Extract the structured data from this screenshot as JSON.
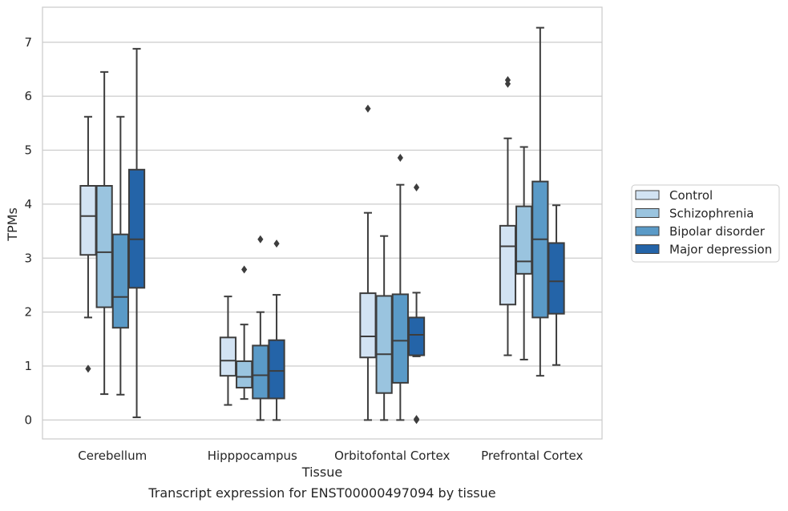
{
  "chart_data": {
    "type": "box",
    "caption": "Transcript expression for ENST00000497094 by tissue",
    "xlabel": "Tissue",
    "ylabel": "TPMs",
    "ylim": [
      -0.35,
      7.65
    ],
    "yticks": [
      0,
      1,
      2,
      3,
      4,
      5,
      6,
      7
    ],
    "grid": true,
    "legend_position": "right",
    "categories": [
      "Cerebellum",
      "Hipppocampus",
      "Orbitofontal Cortex",
      "Prefrontal Cortex"
    ],
    "series": [
      {
        "name": "Control",
        "color": "#d2e3f3",
        "boxes": [
          {
            "whisker_low": 1.9,
            "q1": 3.06,
            "median": 3.78,
            "q3": 4.34,
            "whisker_high": 5.62,
            "outliers": [
              0.95
            ]
          },
          {
            "whisker_low": 0.28,
            "q1": 0.82,
            "median": 1.1,
            "q3": 1.53,
            "whisker_high": 2.29,
            "outliers": []
          },
          {
            "whisker_low": 0.0,
            "q1": 1.16,
            "median": 1.55,
            "q3": 2.35,
            "whisker_high": 3.84,
            "outliers": [
              5.77
            ]
          },
          {
            "whisker_low": 1.2,
            "q1": 2.14,
            "median": 3.22,
            "q3": 3.6,
            "whisker_high": 5.22,
            "outliers": [
              6.23,
              6.3
            ]
          }
        ]
      },
      {
        "name": "Schizophrenia",
        "color": "#9ac4df",
        "boxes": [
          {
            "whisker_low": 0.48,
            "q1": 2.09,
            "median": 3.11,
            "q3": 4.34,
            "whisker_high": 6.45,
            "outliers": []
          },
          {
            "whisker_low": 0.39,
            "q1": 0.6,
            "median": 0.8,
            "q3": 1.09,
            "whisker_high": 1.77,
            "outliers": [
              2.79
            ]
          },
          {
            "whisker_low": 0.0,
            "q1": 0.5,
            "median": 1.22,
            "q3": 2.3,
            "whisker_high": 3.41,
            "outliers": []
          },
          {
            "whisker_low": 1.12,
            "q1": 2.71,
            "median": 2.94,
            "q3": 3.96,
            "whisker_high": 5.06,
            "outliers": []
          }
        ]
      },
      {
        "name": "Bipolar disorder",
        "color": "#5a9ac7",
        "boxes": [
          {
            "whisker_low": 0.47,
            "q1": 1.71,
            "median": 2.28,
            "q3": 3.44,
            "whisker_high": 5.62,
            "outliers": []
          },
          {
            "whisker_low": 0.0,
            "q1": 0.4,
            "median": 0.83,
            "q3": 1.38,
            "whisker_high": 2.0,
            "outliers": [
              3.35
            ]
          },
          {
            "whisker_low": 0.0,
            "q1": 0.69,
            "median": 1.47,
            "q3": 2.33,
            "whisker_high": 4.36,
            "outliers": [
              4.86
            ]
          },
          {
            "whisker_low": 0.82,
            "q1": 1.9,
            "median": 3.35,
            "q3": 4.42,
            "whisker_high": 7.27,
            "outliers": []
          }
        ]
      },
      {
        "name": "Major depression",
        "color": "#2464a8",
        "boxes": [
          {
            "whisker_low": 0.05,
            "q1": 2.45,
            "median": 3.35,
            "q3": 4.64,
            "whisker_high": 6.88,
            "outliers": []
          },
          {
            "whisker_low": 0.0,
            "q1": 0.4,
            "median": 0.91,
            "q3": 1.48,
            "whisker_high": 2.32,
            "outliers": [
              3.27
            ]
          },
          {
            "whisker_low": 1.18,
            "q1": 1.2,
            "median": 1.58,
            "q3": 1.9,
            "whisker_high": 2.36,
            "outliers": [
              4.31,
              0.0,
              0.02
            ]
          },
          {
            "whisker_low": 1.02,
            "q1": 1.97,
            "median": 2.57,
            "q3": 3.28,
            "whisker_high": 3.98,
            "outliers": []
          }
        ]
      }
    ]
  }
}
